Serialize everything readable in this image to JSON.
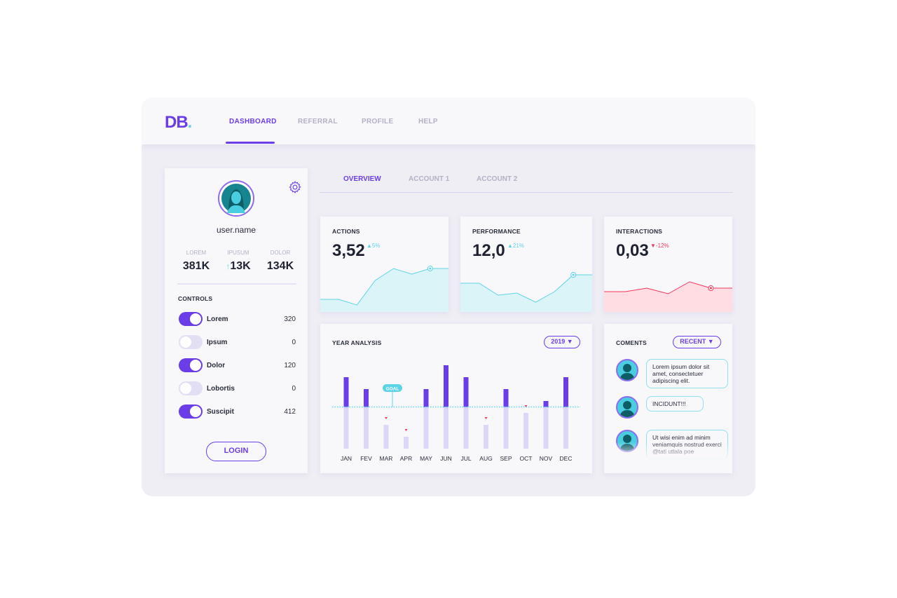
{
  "brand": {
    "logo_main": "DB",
    "logo_dot": "."
  },
  "nav": {
    "items": [
      "DASHBOARD",
      "REFERRAL",
      "PROFILE",
      "HELP"
    ],
    "active": "DASHBOARD"
  },
  "tabs": {
    "items": [
      "OVERVIEW",
      "ACCOUNT 1",
      "ACCOUNT 2"
    ],
    "active": "OVERVIEW"
  },
  "profile": {
    "username": "user.name",
    "stats": [
      {
        "label": "LOREM",
        "value": "381K"
      },
      {
        "label": "IPUSUM",
        "value": "13K",
        "icon": "arrow-up-icon"
      },
      {
        "label": "DOLOR",
        "value": "134K"
      }
    ],
    "controls_title": "CONTROLS",
    "controls": [
      {
        "label": "Lorem",
        "value": "320",
        "on": true
      },
      {
        "label": "Ipsum",
        "value": "0",
        "on": false
      },
      {
        "label": "Dolor",
        "value": "120",
        "on": true
      },
      {
        "label": "Lobortis",
        "value": "0",
        "on": false
      },
      {
        "label": "Suscipit",
        "value": "412",
        "on": true
      }
    ],
    "login_label": "LOGIN"
  },
  "kpis": [
    {
      "title": "ACTIONS",
      "value": "3,52",
      "delta": "▲5%",
      "trend_dir": "up",
      "color": "#5fd3e6",
      "fill": "#dbf4f8",
      "trend": [
        18,
        18,
        10,
        45,
        62,
        54,
        62,
        62
      ],
      "marker": 6
    },
    {
      "title": "PERFORMANCE",
      "value": "12,0",
      "delta": "▲21%",
      "trend_dir": "up",
      "color": "#5fd3e6",
      "fill": "#dbf4f8",
      "trend": [
        41,
        41,
        24,
        27,
        14,
        29,
        53,
        53
      ],
      "marker": 6
    },
    {
      "title": "INTERACTIONS",
      "value": "0,03",
      "delta": "▼-12%",
      "trend_dir": "down",
      "color": "#f0365a",
      "fill": "#ffdde3",
      "trend": [
        29,
        29,
        34,
        26,
        43,
        34,
        34
      ],
      "marker": 5
    }
  ],
  "chart_data": {
    "type": "bar",
    "title": "YEAR ANALYSIS",
    "year_selector": "2019 ▼",
    "categories": [
      "JAN",
      "FEV",
      "MAR",
      "APR",
      "MAY",
      "JUN",
      "JUL",
      "AUG",
      "SEP",
      "OCT",
      "NOV",
      "DEC"
    ],
    "values": [
      6,
      5,
      2,
      1,
      5,
      7,
      6,
      2,
      5,
      3,
      4,
      6
    ],
    "goal": 3.5,
    "goal_label": "GOAL",
    "ylim": [
      0,
      7
    ],
    "colors": {
      "above_goal": "#6a3de8",
      "below_goal": "#dcd6f7",
      "goal_line": "#5fd3e6",
      "miss_marker": "#f0365a"
    }
  },
  "comments": {
    "title": "COMENTS",
    "filter": "RECENT ▼",
    "items": [
      {
        "text": "Lorem ipsum dolor sit amet, consectetuer adipiscing elit."
      },
      {
        "text": "INCIDUNT!!!"
      },
      {
        "text": "Ut wisi enim ad minim veniamquis nostrud exerci @tati utlala poe"
      }
    ]
  }
}
